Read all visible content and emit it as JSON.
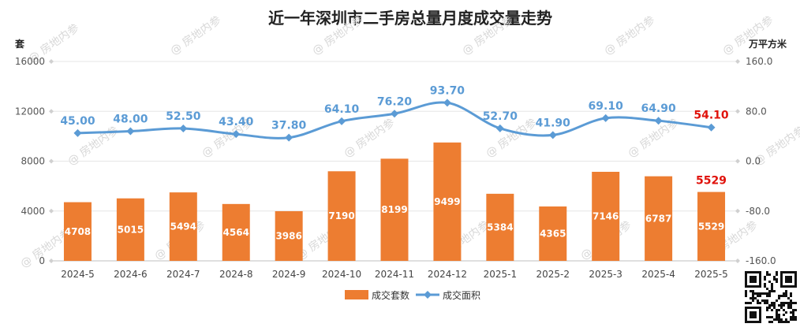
{
  "chart_data": {
    "type": "bar",
    "title": "近一年深圳市二手房总量月度成交量走势",
    "left_unit": "套",
    "right_unit": "万平方米",
    "categories": [
      "2024-5",
      "2024-6",
      "2024-7",
      "2024-8",
      "2024-9",
      "2024-10",
      "2024-11",
      "2024-12",
      "2025-1",
      "2025-2",
      "2025-3",
      "2025-4",
      "2025-5"
    ],
    "series": [
      {
        "name": "成交套数",
        "type": "bar",
        "axis": "left",
        "color": "#ed7d31",
        "values": [
          4708,
          5015,
          5494,
          4564,
          3986,
          7190,
          8199,
          9499,
          5384,
          4365,
          7146,
          6787,
          5529
        ]
      },
      {
        "name": "成交面积",
        "type": "line",
        "axis": "right",
        "color": "#5b9bd5",
        "values": [
          45.0,
          48.0,
          52.5,
          43.4,
          37.8,
          64.1,
          76.2,
          93.7,
          52.7,
          41.9,
          69.1,
          64.9,
          54.1
        ]
      }
    ],
    "left_ylim": [
      0,
      16000
    ],
    "left_ticks": [
      "0",
      "4000",
      "8000",
      "12000",
      "16000"
    ],
    "right_ylim": [
      -160,
      160
    ],
    "right_ticks": [
      "-160.0",
      "-80.0",
      "0.0",
      "80.0",
      "160.0"
    ],
    "highlight_color": "#e0120b",
    "grid": true,
    "legend_position": "bottom"
  },
  "watermark": "房地内参"
}
